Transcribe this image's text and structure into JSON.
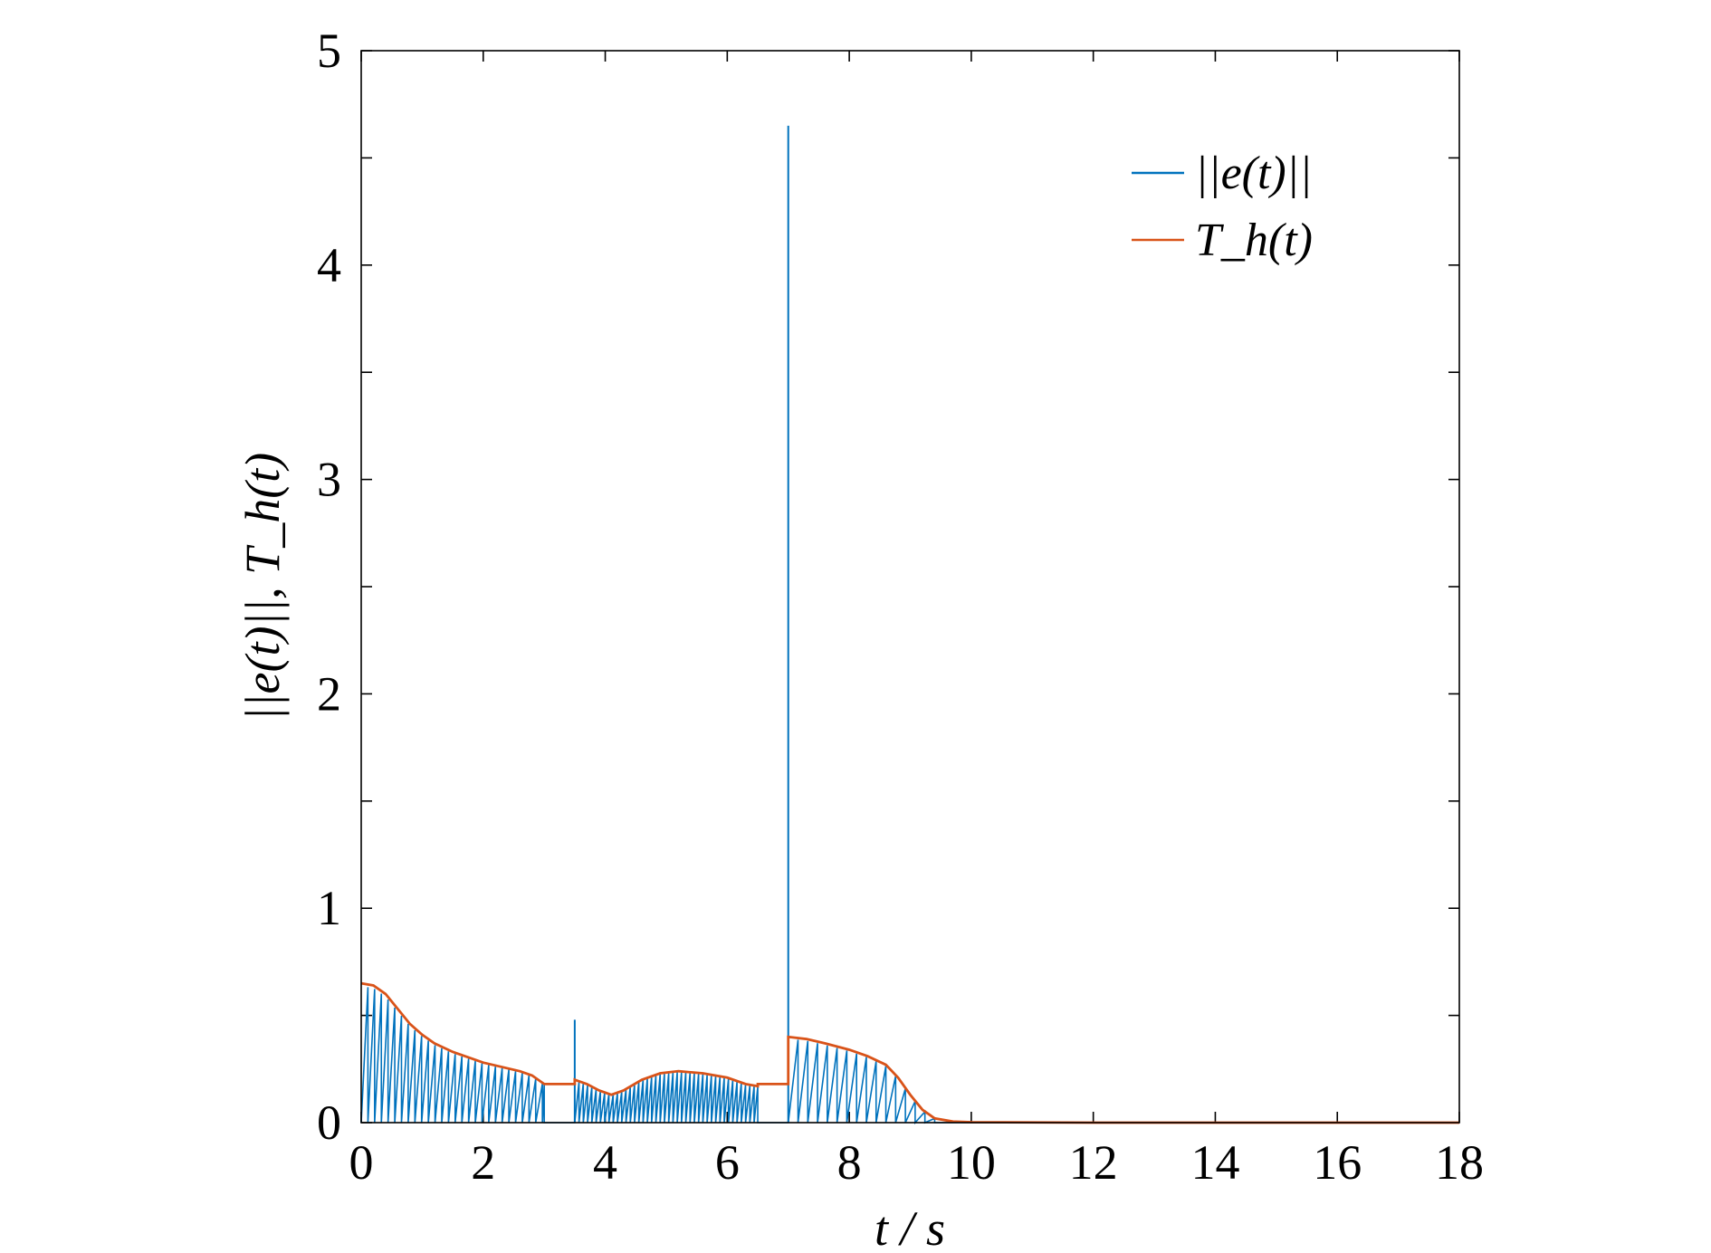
{
  "chart_data": {
    "type": "line",
    "xlabel": "t / s",
    "ylabel": "||e(t)||, T_h(t)",
    "xlim": [
      0,
      18
    ],
    "ylim": [
      0,
      5
    ],
    "xticks": [
      "0",
      "2",
      "4",
      "6",
      "8",
      "10",
      "12",
      "14",
      "16",
      "18"
    ],
    "yticks": [
      "0",
      "1",
      "2",
      "3",
      "4",
      "5"
    ],
    "grid": false,
    "legend_position": "top-right",
    "series": [
      {
        "name": "||e(t)||",
        "color": "#0072BD",
        "style": "sawtooth",
        "segments": [
          {
            "x": [
              0.0,
              3.0
            ],
            "threshold_ref": true,
            "period": 0.11
          },
          {
            "x": [
              3.5,
              6.5
            ],
            "threshold_ref": true,
            "period": 0.07
          },
          {
            "x": [
              7.0,
              9.4
            ],
            "threshold_ref": true,
            "period": 0.16
          }
        ],
        "spikes": [
          {
            "x": 3.5,
            "y": 0.48
          },
          {
            "x": 7.0,
            "y": 4.65
          }
        ]
      },
      {
        "name": "T_h(t)",
        "color": "#D95319",
        "style": "line",
        "points": [
          [
            0.0,
            0.65
          ],
          [
            0.2,
            0.64
          ],
          [
            0.4,
            0.6
          ],
          [
            0.6,
            0.53
          ],
          [
            0.8,
            0.46
          ],
          [
            1.0,
            0.41
          ],
          [
            1.2,
            0.37
          ],
          [
            1.5,
            0.33
          ],
          [
            1.8,
            0.3
          ],
          [
            2.0,
            0.28
          ],
          [
            2.3,
            0.26
          ],
          [
            2.6,
            0.24
          ],
          [
            2.8,
            0.22
          ],
          [
            3.0,
            0.18
          ],
          [
            3.5,
            0.18
          ],
          [
            3.5,
            0.2
          ],
          [
            3.7,
            0.18
          ],
          [
            3.9,
            0.15
          ],
          [
            4.1,
            0.13
          ],
          [
            4.3,
            0.15
          ],
          [
            4.6,
            0.2
          ],
          [
            4.9,
            0.23
          ],
          [
            5.2,
            0.24
          ],
          [
            5.6,
            0.23
          ],
          [
            6.0,
            0.21
          ],
          [
            6.3,
            0.18
          ],
          [
            6.5,
            0.17
          ],
          [
            6.5,
            0.18
          ],
          [
            7.0,
            0.18
          ],
          [
            7.0,
            0.4
          ],
          [
            7.3,
            0.39
          ],
          [
            7.6,
            0.37
          ],
          [
            8.0,
            0.34
          ],
          [
            8.3,
            0.31
          ],
          [
            8.6,
            0.27
          ],
          [
            8.8,
            0.21
          ],
          [
            9.0,
            0.13
          ],
          [
            9.2,
            0.06
          ],
          [
            9.4,
            0.02
          ],
          [
            9.7,
            0.005
          ],
          [
            10.0,
            0.002
          ],
          [
            12.0,
            0.0
          ],
          [
            18.0,
            0.0
          ]
        ]
      }
    ]
  }
}
